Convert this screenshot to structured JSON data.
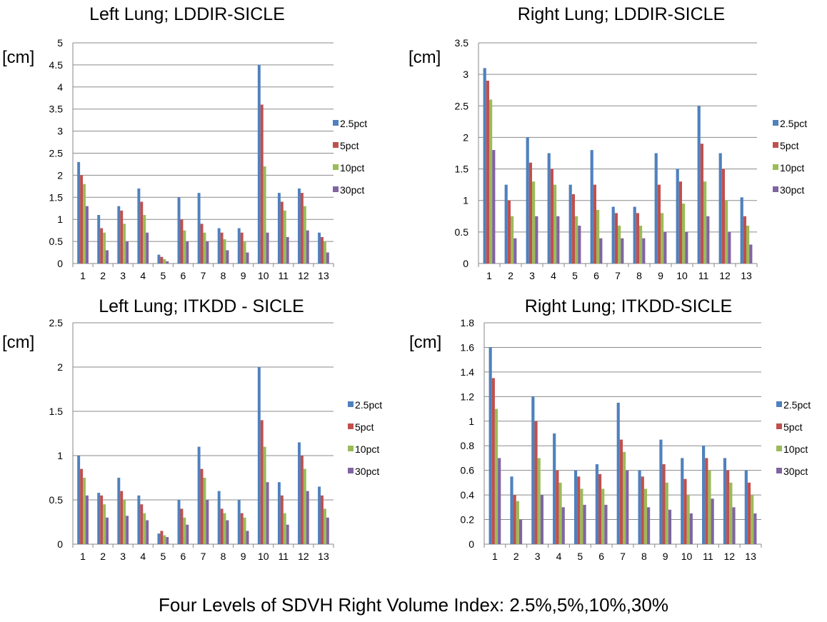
{
  "footer_caption": "Four Levels of SDVH Right Volume Index: 2.5%,5%,10%,30%",
  "legend": [
    {
      "name": "2.5pct",
      "color": "#4f81bd"
    },
    {
      "name": "5pct",
      "color": "#c0504d"
    },
    {
      "name": "10pct",
      "color": "#9bbb59"
    },
    {
      "name": "30pct",
      "color": "#8064a2"
    }
  ],
  "chart_data": [
    {
      "type": "bar",
      "title": "Left Lung; LDDIR-SICLE",
      "ylabel": "[cm]",
      "xlabel": "",
      "ylim": [
        0,
        5
      ],
      "yticks": [
        "0",
        "0.5",
        "1",
        "1.5",
        "2",
        "2.5",
        "3",
        "3.5",
        "4",
        "4.5",
        "5"
      ],
      "categories": [
        "1",
        "2",
        "3",
        "4",
        "5",
        "6",
        "7",
        "8",
        "9",
        "10",
        "11",
        "12",
        "13"
      ],
      "grid": true,
      "legend_position": "right",
      "series": [
        {
          "name": "2.5pct",
          "values": [
            2.3,
            1.1,
            1.3,
            1.7,
            0.2,
            1.5,
            1.6,
            0.8,
            0.8,
            4.5,
            1.6,
            1.7,
            0.7
          ]
        },
        {
          "name": "5pct",
          "values": [
            2.0,
            0.8,
            1.2,
            1.4,
            0.15,
            1.0,
            0.9,
            0.7,
            0.7,
            3.6,
            1.4,
            1.6,
            0.6
          ]
        },
        {
          "name": "10pct",
          "values": [
            1.8,
            0.7,
            0.9,
            1.1,
            0.1,
            0.75,
            0.7,
            0.55,
            0.5,
            2.2,
            1.2,
            1.3,
            0.5
          ]
        },
        {
          "name": "30pct",
          "values": [
            1.3,
            0.3,
            0.5,
            0.7,
            0.05,
            0.5,
            0.5,
            0.3,
            0.25,
            0.7,
            0.6,
            0.75,
            0.25
          ]
        }
      ]
    },
    {
      "type": "bar",
      "title": "Right Lung; LDDIR-SICLE",
      "ylabel": "[cm]",
      "xlabel": "",
      "ylim": [
        0,
        3.5
      ],
      "yticks": [
        "0",
        "0.5",
        "1",
        "1.5",
        "2",
        "2.5",
        "3",
        "3.5"
      ],
      "categories": [
        "1",
        "2",
        "3",
        "4",
        "5",
        "6",
        "7",
        "8",
        "9",
        "10",
        "11",
        "12",
        "13"
      ],
      "grid": true,
      "legend_position": "right",
      "series": [
        {
          "name": "2.5pct",
          "values": [
            3.1,
            1.25,
            2.0,
            1.75,
            1.25,
            1.8,
            0.9,
            0.9,
            1.75,
            1.5,
            2.5,
            1.75,
            1.05
          ]
        },
        {
          "name": "5pct",
          "values": [
            2.9,
            1.0,
            1.6,
            1.5,
            1.1,
            1.25,
            0.8,
            0.8,
            1.25,
            1.3,
            1.9,
            1.5,
            0.75
          ]
        },
        {
          "name": "10pct",
          "values": [
            2.6,
            0.75,
            1.3,
            1.25,
            0.75,
            0.85,
            0.6,
            0.6,
            0.8,
            0.95,
            1.3,
            1.0,
            0.6
          ]
        },
        {
          "name": "30pct",
          "values": [
            1.8,
            0.4,
            0.75,
            0.75,
            0.6,
            0.4,
            0.4,
            0.4,
            0.5,
            0.5,
            0.75,
            0.5,
            0.3
          ]
        }
      ]
    },
    {
      "type": "bar",
      "title": "Left Lung; ITKDD - SICLE",
      "ylabel": "[cm]",
      "xlabel": "",
      "ylim": [
        0,
        2.5
      ],
      "yticks": [
        "0",
        "0.5",
        "1",
        "1.5",
        "2",
        "2.5"
      ],
      "categories": [
        "1",
        "2",
        "3",
        "4",
        "5",
        "6",
        "7",
        "8",
        "9",
        "10",
        "11",
        "12",
        "13"
      ],
      "grid": true,
      "legend_position": "right",
      "series": [
        {
          "name": "2.5pct",
          "values": [
            1.0,
            0.58,
            0.75,
            0.55,
            0.12,
            0.5,
            1.1,
            0.6,
            0.5,
            2.0,
            0.7,
            1.15,
            0.65
          ]
        },
        {
          "name": "5pct",
          "values": [
            0.85,
            0.55,
            0.6,
            0.45,
            0.15,
            0.4,
            0.85,
            0.4,
            0.35,
            1.4,
            0.55,
            1.0,
            0.55
          ]
        },
        {
          "name": "10pct",
          "values": [
            0.75,
            0.45,
            0.5,
            0.35,
            0.1,
            0.3,
            0.75,
            0.35,
            0.3,
            1.1,
            0.35,
            0.85,
            0.4
          ]
        },
        {
          "name": "30pct",
          "values": [
            0.55,
            0.3,
            0.32,
            0.27,
            0.08,
            0.22,
            0.5,
            0.27,
            0.15,
            0.7,
            0.22,
            0.6,
            0.3
          ]
        }
      ]
    },
    {
      "type": "bar",
      "title": "Right Lung; ITKDD-SICLE",
      "ylabel": "[cm]",
      "xlabel": "",
      "ylim": [
        0,
        1.8
      ],
      "yticks": [
        "0",
        "0.2",
        "0.4",
        "0.6",
        "0.8",
        "1",
        "1.2",
        "1.4",
        "1.6",
        "1.8"
      ],
      "categories": [
        "1",
        "2",
        "3",
        "4",
        "5",
        "6",
        "7",
        "8",
        "9",
        "10",
        "11",
        "12",
        "13"
      ],
      "grid": true,
      "legend_position": "right",
      "series": [
        {
          "name": "2.5pct",
          "values": [
            1.6,
            0.55,
            1.2,
            0.9,
            0.6,
            0.65,
            1.15,
            0.6,
            0.85,
            0.7,
            0.8,
            0.7,
            0.6
          ]
        },
        {
          "name": "5pct",
          "values": [
            1.35,
            0.4,
            1.0,
            0.6,
            0.55,
            0.57,
            0.85,
            0.55,
            0.65,
            0.53,
            0.7,
            0.6,
            0.5
          ]
        },
        {
          "name": "10pct",
          "values": [
            1.1,
            0.35,
            0.7,
            0.5,
            0.45,
            0.45,
            0.75,
            0.45,
            0.5,
            0.4,
            0.6,
            0.5,
            0.4
          ]
        },
        {
          "name": "30pct",
          "values": [
            0.7,
            0.2,
            0.4,
            0.3,
            0.32,
            0.32,
            0.6,
            0.3,
            0.28,
            0.25,
            0.37,
            0.3,
            0.25
          ]
        }
      ]
    }
  ]
}
